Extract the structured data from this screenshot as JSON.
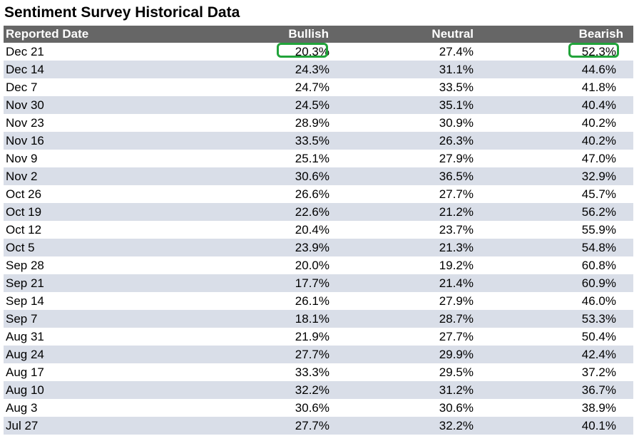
{
  "title": "Sentiment Survey Historical Data",
  "columns": [
    "Reported Date",
    "Bullish",
    "Neutral",
    "Bearish"
  ],
  "highlight_color": "#21a33a",
  "header_color": "#666666",
  "stripe_color": "#d9dee8",
  "rows": [
    {
      "date": "Dec 21",
      "bullish": "20.3%",
      "neutral": "27.4%",
      "bearish": "52.3%"
    },
    {
      "date": "Dec 14",
      "bullish": "24.3%",
      "neutral": "31.1%",
      "bearish": "44.6%"
    },
    {
      "date": "Dec 7",
      "bullish": "24.7%",
      "neutral": "33.5%",
      "bearish": "41.8%"
    },
    {
      "date": "Nov 30",
      "bullish": "24.5%",
      "neutral": "35.1%",
      "bearish": "40.4%"
    },
    {
      "date": "Nov 23",
      "bullish": "28.9%",
      "neutral": "30.9%",
      "bearish": "40.2%"
    },
    {
      "date": "Nov 16",
      "bullish": "33.5%",
      "neutral": "26.3%",
      "bearish": "40.2%"
    },
    {
      "date": "Nov 9",
      "bullish": "25.1%",
      "neutral": "27.9%",
      "bearish": "47.0%"
    },
    {
      "date": "Nov 2",
      "bullish": "30.6%",
      "neutral": "36.5%",
      "bearish": "32.9%"
    },
    {
      "date": "Oct 26",
      "bullish": "26.6%",
      "neutral": "27.7%",
      "bearish": "45.7%"
    },
    {
      "date": "Oct 19",
      "bullish": "22.6%",
      "neutral": "21.2%",
      "bearish": "56.2%"
    },
    {
      "date": "Oct 12",
      "bullish": "20.4%",
      "neutral": "23.7%",
      "bearish": "55.9%"
    },
    {
      "date": "Oct 5",
      "bullish": "23.9%",
      "neutral": "21.3%",
      "bearish": "54.8%"
    },
    {
      "date": "Sep 28",
      "bullish": "20.0%",
      "neutral": "19.2%",
      "bearish": "60.8%"
    },
    {
      "date": "Sep 21",
      "bullish": "17.7%",
      "neutral": "21.4%",
      "bearish": "60.9%"
    },
    {
      "date": "Sep 14",
      "bullish": "26.1%",
      "neutral": "27.9%",
      "bearish": "46.0%"
    },
    {
      "date": "Sep 7",
      "bullish": "18.1%",
      "neutral": "28.7%",
      "bearish": "53.3%"
    },
    {
      "date": "Aug 31",
      "bullish": "21.9%",
      "neutral": "27.7%",
      "bearish": "50.4%"
    },
    {
      "date": "Aug 24",
      "bullish": "27.7%",
      "neutral": "29.9%",
      "bearish": "42.4%"
    },
    {
      "date": "Aug 17",
      "bullish": "33.3%",
      "neutral": "29.5%",
      "bearish": "37.2%"
    },
    {
      "date": "Aug 10",
      "bullish": "32.2%",
      "neutral": "31.2%",
      "bearish": "36.7%"
    },
    {
      "date": "Aug 3",
      "bullish": "30.6%",
      "neutral": "30.6%",
      "bearish": "38.9%"
    },
    {
      "date": "Jul 27",
      "bullish": "27.7%",
      "neutral": "32.2%",
      "bearish": "40.1%"
    }
  ]
}
